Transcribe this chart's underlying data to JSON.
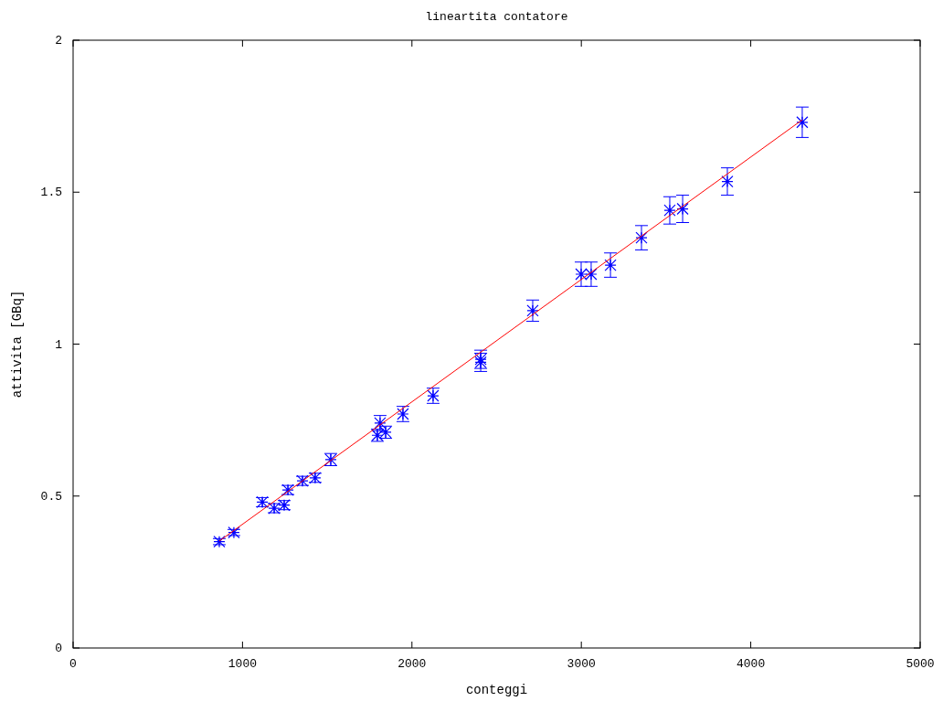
{
  "chart_data": {
    "type": "scatter",
    "title": "lineartita contatore",
    "xlabel": "conteggi",
    "ylabel": "attivita [GBq]",
    "xlim": [
      0,
      5000
    ],
    "xticks": [
      0,
      1000,
      2000,
      3000,
      4000,
      5000
    ],
    "ylim": [
      0,
      2
    ],
    "yticks": [
      0,
      0.5,
      1,
      1.5,
      2
    ],
    "grid": false,
    "series": [
      {
        "color": "#0000ff",
        "marker": "cross",
        "x": [
          863,
          949,
          1117,
          1187,
          1246,
          1268,
          1354,
          1429,
          1521,
          1796,
          1812,
          1845,
          1947,
          2125,
          2406,
          2406,
          2713,
          2999,
          3058,
          3172,
          3355,
          3522,
          3598,
          3862,
          4304
        ],
        "values": [
          0.35,
          0.38,
          0.48,
          0.46,
          0.47,
          0.52,
          0.55,
          0.56,
          0.62,
          0.7,
          0.74,
          0.71,
          0.77,
          0.83,
          0.95,
          0.94,
          1.11,
          1.23,
          1.23,
          1.26,
          1.35,
          1.44,
          1.445,
          1.535,
          1.73
        ],
        "errors": [
          0.01,
          0.01,
          0.015,
          0.015,
          0.015,
          0.015,
          0.015,
          0.015,
          0.02,
          0.02,
          0.025,
          0.02,
          0.025,
          0.025,
          0.03,
          0.03,
          0.035,
          0.04,
          0.04,
          0.04,
          0.04,
          0.045,
          0.045,
          0.045,
          0.05
        ]
      },
      {
        "type": "line",
        "color": "#ff0000",
        "line_style": "solid",
        "x": [
          863,
          4304
        ],
        "values": [
          0.352,
          1.738
        ]
      }
    ]
  }
}
